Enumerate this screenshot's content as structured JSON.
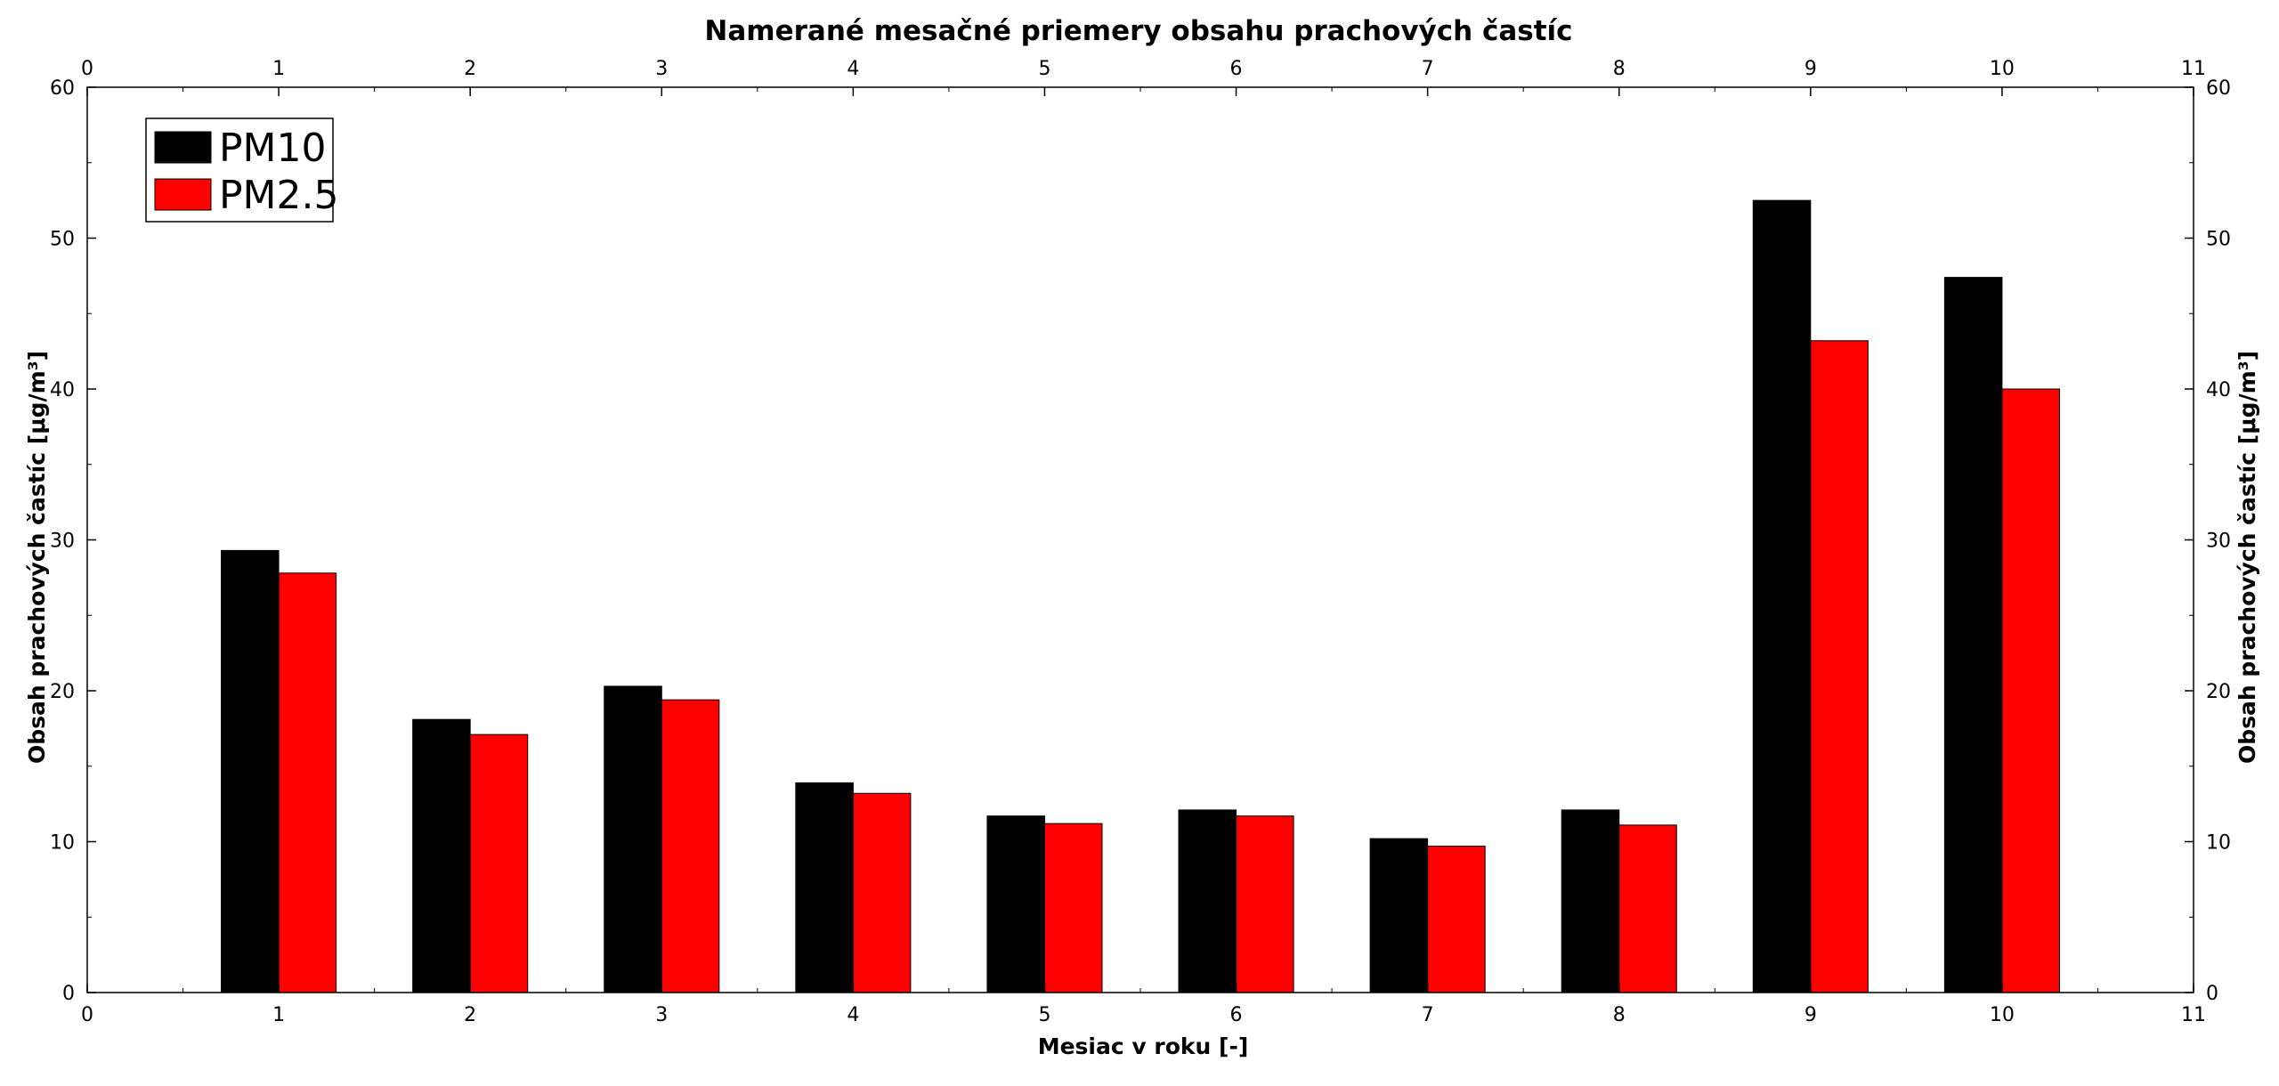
{
  "chart_data": {
    "type": "bar",
    "title": "Namerané mesačné priemery obsahu prachových častíc",
    "xlabel": "Mesiac v roku [-]",
    "ylabel": "Obsah prachových častíc [μg/m³]",
    "ylabel_right": "Obsah prachových častíc [μg/m³]",
    "xlim": [
      0,
      11
    ],
    "ylim": [
      0,
      60
    ],
    "x_ticks": [
      0,
      1,
      2,
      3,
      4,
      5,
      6,
      7,
      8,
      9,
      10,
      11
    ],
    "y_ticks": [
      0,
      10,
      20,
      30,
      40,
      50,
      60
    ],
    "categories": [
      1,
      2,
      3,
      4,
      5,
      6,
      7,
      8,
      9,
      10
    ],
    "series": [
      {
        "name": "PM10",
        "color": "#000000",
        "values": [
          29.3,
          18.1,
          20.3,
          13.9,
          11.7,
          12.1,
          10.2,
          12.1,
          52.5,
          47.4
        ]
      },
      {
        "name": "PM2.5",
        "color": "#ff0000",
        "values": [
          27.8,
          17.1,
          19.4,
          13.2,
          11.2,
          11.7,
          9.7,
          11.1,
          43.2,
          40.0
        ]
      }
    ],
    "legend_position": "top-left",
    "grid": false
  }
}
